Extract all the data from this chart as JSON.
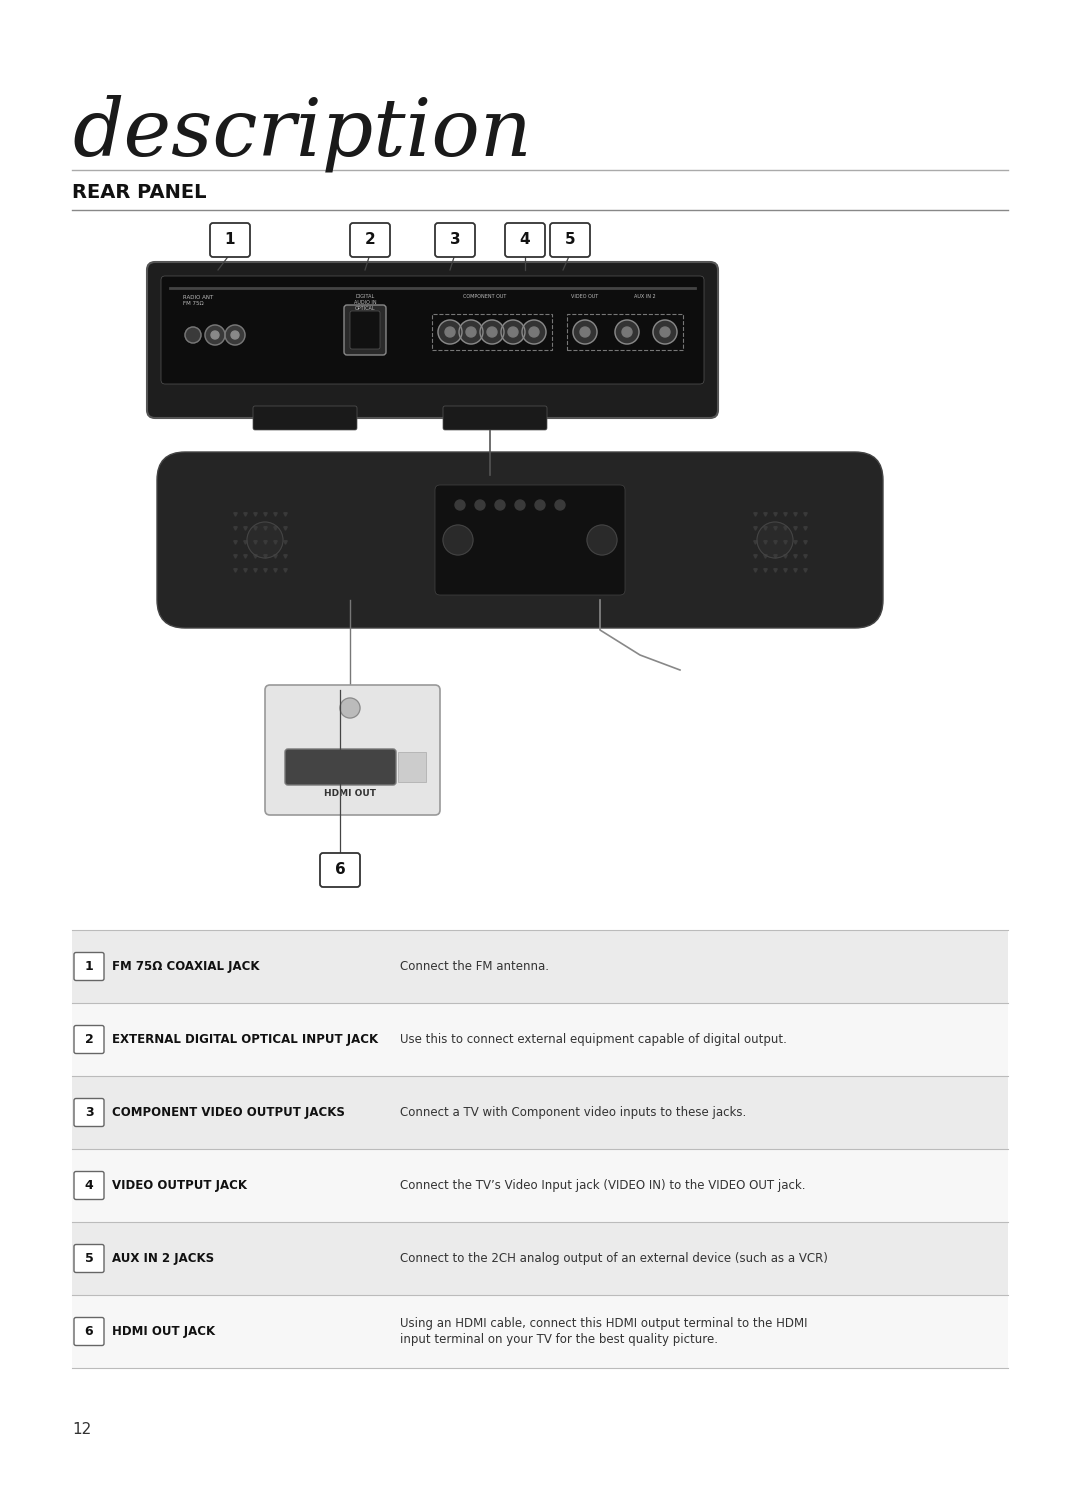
{
  "title": "description",
  "section": "REAR PANEL",
  "page_number": "12",
  "background_color": "#ffffff",
  "table_rows": [
    {
      "num": "1",
      "label": "FM 75Ω COAXIAL JACK",
      "description": "Connect the FM antenna."
    },
    {
      "num": "2",
      "label": "EXTERNAL DIGITAL OPTICAL INPUT JACK",
      "description": "Use this to connect external equipment capable of digital output."
    },
    {
      "num": "3",
      "label": "COMPONENT VIDEO OUTPUT JACKS",
      "description": "Connect a TV with Component video inputs to these jacks."
    },
    {
      "num": "4",
      "label": "VIDEO OUTPUT JACK",
      "description": "Connect the TV’s Video Input jack (VIDEO IN) to the VIDEO OUT jack."
    },
    {
      "num": "5",
      "label": "AUX IN 2 JACKS",
      "description": "Connect to the 2CH analog output of an external device (such as a VCR)"
    },
    {
      "num": "6",
      "label": "HDMI OUT JACK",
      "description": "Using an HDMI cable, connect this HDMI output terminal to the HDMI\ninput terminal on your TV for the best quality picture."
    }
  ],
  "table_line_color": "#bbbbbb",
  "row_bg_even": "#ebebeb",
  "row_bg_odd": "#f7f7f7"
}
